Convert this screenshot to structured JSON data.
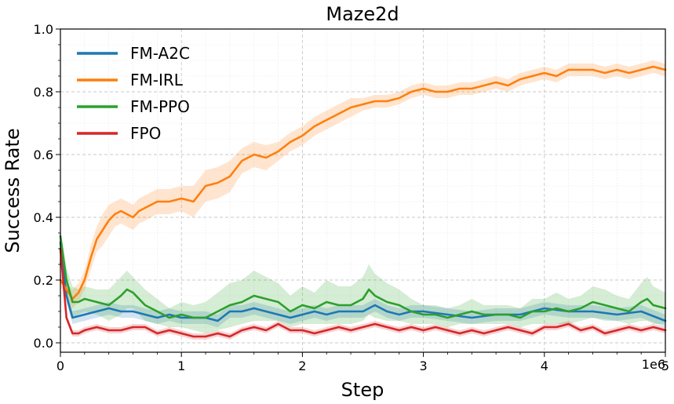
{
  "chart_data": {
    "type": "line",
    "title": "Maze2d",
    "xlabel": "Step",
    "ylabel": "Success Rate",
    "x_offset_label": "1e6",
    "xlim": [
      0,
      5
    ],
    "ylim": [
      -0.03,
      1.0
    ],
    "x_ticks": [
      0,
      1,
      2,
      3,
      4,
      5
    ],
    "x_tick_labels": [
      "0",
      "1",
      "2",
      "3",
      "4",
      "5"
    ],
    "y_ticks": [
      0.0,
      0.2,
      0.4,
      0.6,
      0.8,
      1.0
    ],
    "y_tick_labels": [
      "0.0",
      "0.2",
      "0.4",
      "0.6",
      "0.8",
      "1.0"
    ],
    "grid": true,
    "legend_position": "top-left",
    "series": [
      {
        "name": "FM-A2C",
        "color": "#1f77b4",
        "x": [
          0,
          0.05,
          0.1,
          0.2,
          0.3,
          0.4,
          0.5,
          0.6,
          0.7,
          0.8,
          0.9,
          1.0,
          1.1,
          1.2,
          1.3,
          1.4,
          1.5,
          1.6,
          1.7,
          1.8,
          1.9,
          2.0,
          2.1,
          2.2,
          2.3,
          2.4,
          2.5,
          2.6,
          2.7,
          2.8,
          2.9,
          3.0,
          3.2,
          3.4,
          3.6,
          3.8,
          4.0,
          4.2,
          4.4,
          4.6,
          4.8,
          5.0
        ],
        "values": [
          0.32,
          0.15,
          0.08,
          0.09,
          0.1,
          0.11,
          0.1,
          0.1,
          0.09,
          0.08,
          0.09,
          0.08,
          0.08,
          0.08,
          0.07,
          0.1,
          0.1,
          0.11,
          0.1,
          0.09,
          0.08,
          0.09,
          0.1,
          0.09,
          0.1,
          0.1,
          0.1,
          0.12,
          0.1,
          0.09,
          0.1,
          0.1,
          0.09,
          0.08,
          0.09,
          0.09,
          0.11,
          0.1,
          0.1,
          0.09,
          0.1,
          0.07
        ],
        "band": [
          0.02,
          0.02,
          0.02,
          0.02,
          0.02,
          0.02,
          0.02,
          0.02,
          0.02,
          0.02,
          0.02,
          0.02,
          0.02,
          0.02,
          0.02,
          0.02,
          0.02,
          0.02,
          0.02,
          0.02,
          0.02,
          0.02,
          0.02,
          0.02,
          0.02,
          0.02,
          0.02,
          0.02,
          0.02,
          0.02,
          0.02,
          0.02,
          0.02,
          0.02,
          0.02,
          0.02,
          0.02,
          0.02,
          0.02,
          0.02,
          0.02,
          0.02
        ]
      },
      {
        "name": "FM-IRL",
        "color": "#ff7f0e",
        "x": [
          0,
          0.05,
          0.1,
          0.15,
          0.2,
          0.25,
          0.3,
          0.35,
          0.4,
          0.45,
          0.5,
          0.55,
          0.6,
          0.65,
          0.7,
          0.8,
          0.9,
          1.0,
          1.1,
          1.2,
          1.3,
          1.4,
          1.5,
          1.6,
          1.7,
          1.8,
          1.9,
          2.0,
          2.1,
          2.2,
          2.3,
          2.4,
          2.5,
          2.6,
          2.7,
          2.8,
          2.9,
          3.0,
          3.1,
          3.2,
          3.3,
          3.4,
          3.5,
          3.6,
          3.7,
          3.8,
          3.9,
          4.0,
          4.1,
          4.2,
          4.3,
          4.4,
          4.5,
          4.6,
          4.7,
          4.8,
          4.9,
          5.0
        ],
        "values": [
          0.2,
          0.17,
          0.14,
          0.16,
          0.2,
          0.27,
          0.33,
          0.36,
          0.39,
          0.41,
          0.42,
          0.41,
          0.4,
          0.42,
          0.43,
          0.45,
          0.45,
          0.46,
          0.45,
          0.5,
          0.51,
          0.53,
          0.58,
          0.6,
          0.59,
          0.61,
          0.64,
          0.66,
          0.69,
          0.71,
          0.73,
          0.75,
          0.76,
          0.77,
          0.77,
          0.78,
          0.8,
          0.81,
          0.8,
          0.8,
          0.81,
          0.81,
          0.82,
          0.83,
          0.82,
          0.84,
          0.85,
          0.86,
          0.85,
          0.87,
          0.87,
          0.87,
          0.86,
          0.87,
          0.86,
          0.87,
          0.88,
          0.87
        ],
        "band": [
          0.02,
          0.02,
          0.03,
          0.03,
          0.03,
          0.04,
          0.04,
          0.05,
          0.05,
          0.04,
          0.04,
          0.04,
          0.04,
          0.04,
          0.04,
          0.04,
          0.04,
          0.04,
          0.05,
          0.05,
          0.05,
          0.05,
          0.04,
          0.04,
          0.04,
          0.03,
          0.03,
          0.03,
          0.03,
          0.03,
          0.03,
          0.03,
          0.02,
          0.02,
          0.02,
          0.02,
          0.02,
          0.02,
          0.02,
          0.02,
          0.02,
          0.02,
          0.02,
          0.02,
          0.02,
          0.02,
          0.02,
          0.02,
          0.02,
          0.02,
          0.02,
          0.02,
          0.02,
          0.02,
          0.02,
          0.02,
          0.02,
          0.02
        ]
      },
      {
        "name": "FM-PPO",
        "color": "#2ca02c",
        "x": [
          0,
          0.05,
          0.1,
          0.15,
          0.2,
          0.3,
          0.4,
          0.5,
          0.55,
          0.6,
          0.7,
          0.8,
          0.9,
          1.0,
          1.1,
          1.2,
          1.3,
          1.4,
          1.5,
          1.6,
          1.7,
          1.8,
          1.9,
          2.0,
          2.1,
          2.2,
          2.3,
          2.4,
          2.5,
          2.55,
          2.6,
          2.7,
          2.8,
          2.9,
          3.0,
          3.1,
          3.2,
          3.3,
          3.4,
          3.5,
          3.6,
          3.7,
          3.8,
          3.9,
          4.0,
          4.1,
          4.2,
          4.3,
          4.4,
          4.5,
          4.6,
          4.7,
          4.8,
          4.85,
          4.9,
          5.0
        ],
        "values": [
          0.34,
          0.2,
          0.13,
          0.13,
          0.14,
          0.13,
          0.12,
          0.15,
          0.17,
          0.16,
          0.12,
          0.1,
          0.08,
          0.09,
          0.08,
          0.08,
          0.1,
          0.12,
          0.13,
          0.15,
          0.14,
          0.13,
          0.1,
          0.12,
          0.11,
          0.13,
          0.12,
          0.12,
          0.14,
          0.17,
          0.15,
          0.13,
          0.12,
          0.1,
          0.09,
          0.09,
          0.08,
          0.09,
          0.1,
          0.09,
          0.09,
          0.09,
          0.08,
          0.1,
          0.1,
          0.11,
          0.1,
          0.11,
          0.13,
          0.12,
          0.11,
          0.1,
          0.13,
          0.14,
          0.12,
          0.11
        ],
        "band": [
          0.02,
          0.04,
          0.05,
          0.04,
          0.04,
          0.04,
          0.05,
          0.06,
          0.06,
          0.05,
          0.05,
          0.04,
          0.03,
          0.04,
          0.04,
          0.05,
          0.06,
          0.07,
          0.07,
          0.08,
          0.07,
          0.06,
          0.05,
          0.06,
          0.05,
          0.07,
          0.06,
          0.06,
          0.07,
          0.08,
          0.07,
          0.06,
          0.05,
          0.04,
          0.03,
          0.03,
          0.03,
          0.03,
          0.04,
          0.03,
          0.03,
          0.03,
          0.03,
          0.04,
          0.04,
          0.05,
          0.04,
          0.04,
          0.05,
          0.05,
          0.04,
          0.04,
          0.06,
          0.07,
          0.06,
          0.05
        ]
      },
      {
        "name": "FPO",
        "color": "#d62728",
        "x": [
          0,
          0.05,
          0.1,
          0.15,
          0.2,
          0.3,
          0.4,
          0.5,
          0.6,
          0.7,
          0.8,
          0.9,
          1.0,
          1.1,
          1.2,
          1.3,
          1.4,
          1.5,
          1.6,
          1.7,
          1.8,
          1.9,
          2.0,
          2.1,
          2.2,
          2.3,
          2.4,
          2.5,
          2.6,
          2.7,
          2.8,
          2.9,
          3.0,
          3.1,
          3.2,
          3.3,
          3.4,
          3.5,
          3.6,
          3.7,
          3.8,
          3.9,
          4.0,
          4.1,
          4.2,
          4.3,
          4.4,
          4.5,
          4.6,
          4.7,
          4.8,
          4.9,
          5.0
        ],
        "values": [
          0.3,
          0.08,
          0.03,
          0.03,
          0.04,
          0.05,
          0.04,
          0.04,
          0.05,
          0.05,
          0.03,
          0.04,
          0.03,
          0.02,
          0.02,
          0.03,
          0.02,
          0.04,
          0.05,
          0.04,
          0.06,
          0.04,
          0.04,
          0.03,
          0.04,
          0.05,
          0.04,
          0.05,
          0.06,
          0.05,
          0.04,
          0.05,
          0.04,
          0.05,
          0.04,
          0.03,
          0.04,
          0.03,
          0.04,
          0.05,
          0.04,
          0.03,
          0.05,
          0.05,
          0.06,
          0.04,
          0.05,
          0.03,
          0.04,
          0.05,
          0.04,
          0.05,
          0.04
        ],
        "band": [
          0.01,
          0.01,
          0.01,
          0.01,
          0.01,
          0.01,
          0.01,
          0.01,
          0.01,
          0.01,
          0.01,
          0.01,
          0.01,
          0.01,
          0.01,
          0.01,
          0.01,
          0.01,
          0.01,
          0.01,
          0.01,
          0.01,
          0.01,
          0.01,
          0.01,
          0.01,
          0.01,
          0.01,
          0.01,
          0.01,
          0.01,
          0.01,
          0.01,
          0.01,
          0.01,
          0.01,
          0.01,
          0.01,
          0.01,
          0.01,
          0.01,
          0.01,
          0.01,
          0.01,
          0.01,
          0.01,
          0.01,
          0.01,
          0.01,
          0.01,
          0.01,
          0.01,
          0.01
        ]
      }
    ]
  }
}
